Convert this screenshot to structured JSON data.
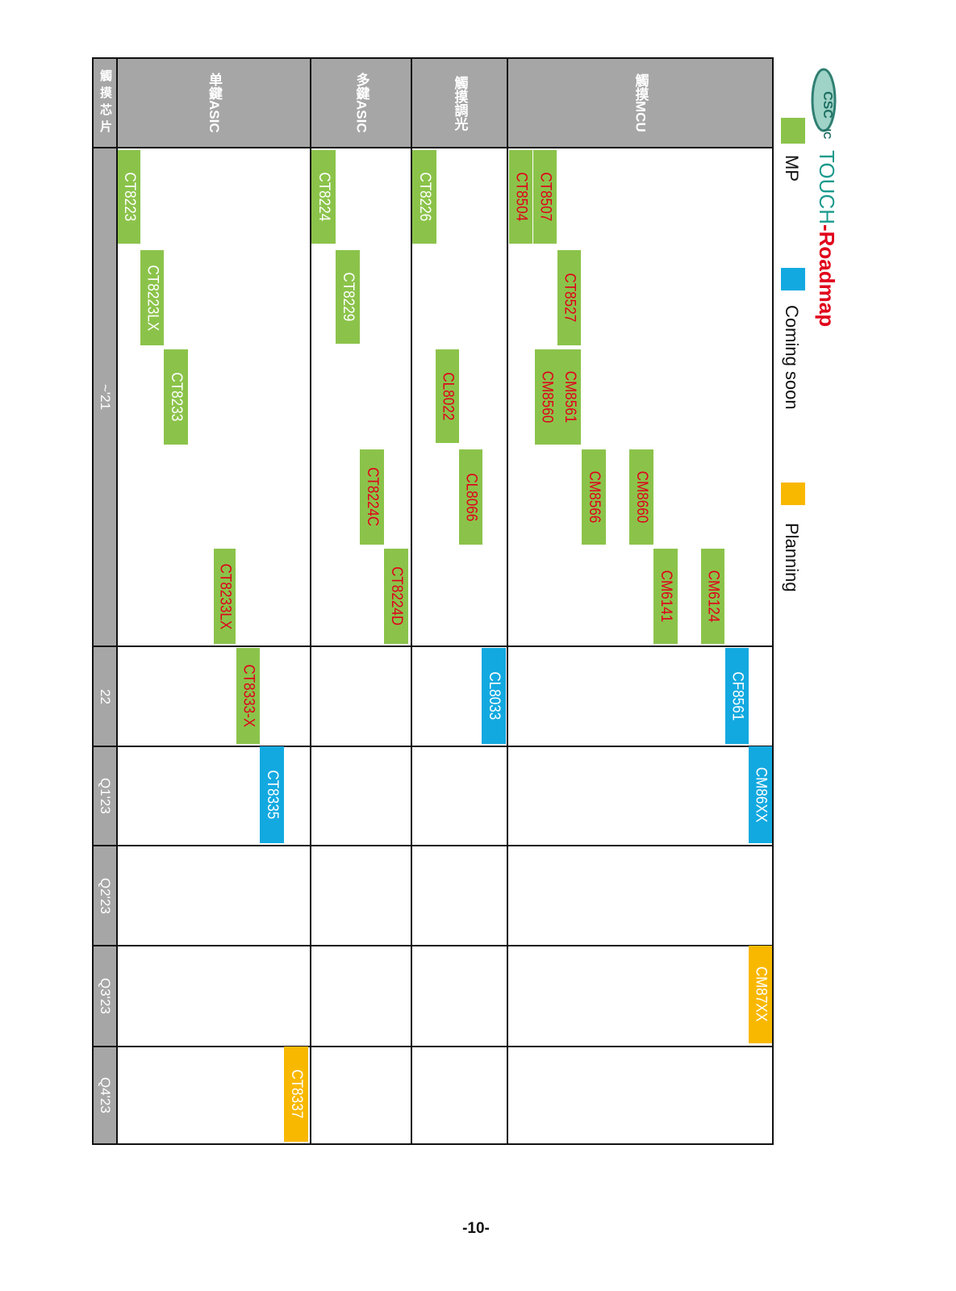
{
  "logo": {
    "text": "CSC IC"
  },
  "title": {
    "part1": "TOUCH",
    "part2": "-Roadmap",
    "color1": "#1a9a8c",
    "color2": "#e0001b"
  },
  "legend": [
    {
      "label": "MP",
      "color": "#8bc34a"
    },
    {
      "label": "Coming soon",
      "color": "#12a9e0"
    },
    {
      "label": "Planning",
      "color": "#f9b800"
    }
  ],
  "table": {
    "corner": "觸摸芯片",
    "periods": [
      "~'21",
      "22",
      "Q1'23",
      "Q2'23",
      "Q3'23",
      "Q4'23"
    ],
    "rows": [
      {
        "id": "mcu",
        "line1": "觸摸",
        "line2": "MCU"
      },
      {
        "id": "dimming",
        "line1": "觸摸",
        "line2": "調光"
      },
      {
        "id": "multi-key",
        "line1": "多鍵",
        "line2": "ASIC"
      },
      {
        "id": "single-key",
        "line1": "单鍵",
        "line2": "ASIC"
      }
    ]
  },
  "products": [
    {
      "name": "CT8504",
      "row": "mcu",
      "period": "~'21",
      "status": "MP",
      "label_color": "#e0001b"
    },
    {
      "name": "CT8507",
      "row": "mcu",
      "period": "~'21",
      "status": "MP",
      "label_color": "#e0001b"
    },
    {
      "name": "CT8527",
      "row": "mcu",
      "period": "~'21",
      "status": "MP",
      "label_color": "#e0001b"
    },
    {
      "name": "CM8560",
      "row": "mcu",
      "period": "~'21",
      "status": "MP",
      "label_color": "#e0001b"
    },
    {
      "name": "CM8561",
      "row": "mcu",
      "period": "~'21",
      "status": "MP",
      "label_color": "#e0001b"
    },
    {
      "name": "CM8566",
      "row": "mcu",
      "period": "~'21",
      "status": "MP",
      "label_color": "#e0001b"
    },
    {
      "name": "CM8660",
      "row": "mcu",
      "period": "~'21",
      "status": "MP",
      "label_color": "#e0001b"
    },
    {
      "name": "CM6141",
      "row": "mcu",
      "period": "~'21",
      "status": "MP",
      "label_color": "#e0001b"
    },
    {
      "name": "CM6124",
      "row": "mcu",
      "period": "~'21",
      "status": "MP",
      "label_color": "#e0001b"
    },
    {
      "name": "CF8561",
      "row": "mcu",
      "period": "22",
      "status": "Coming soon",
      "label_color": "#ffffff"
    },
    {
      "name": "CM86XX",
      "row": "mcu",
      "period": "Q1'23",
      "status": "Coming soon",
      "label_color": "#ffffff"
    },
    {
      "name": "CM87XX",
      "row": "mcu",
      "period": "Q3'23",
      "status": "Planning",
      "label_color": "#ffffff"
    },
    {
      "name": "CT8226",
      "row": "dimming",
      "period": "~'21",
      "status": "MP",
      "label_color": "#ffffff"
    },
    {
      "name": "CL8022",
      "row": "dimming",
      "period": "~'21",
      "status": "MP",
      "label_color": "#e0001b"
    },
    {
      "name": "CL8066",
      "row": "dimming",
      "period": "~'21",
      "status": "MP",
      "label_color": "#e0001b"
    },
    {
      "name": "CL8033",
      "row": "dimming",
      "period": "22",
      "status": "Coming soon",
      "label_color": "#ffffff"
    },
    {
      "name": "CT8224",
      "row": "multi-key",
      "period": "~'21",
      "status": "MP",
      "label_color": "#ffffff"
    },
    {
      "name": "CT8229",
      "row": "multi-key",
      "period": "~'21",
      "status": "MP",
      "label_color": "#ffffff"
    },
    {
      "name": "CT8224C",
      "row": "multi-key",
      "period": "~'21",
      "status": "MP",
      "label_color": "#e0001b"
    },
    {
      "name": "CT8224D",
      "row": "multi-key",
      "period": "~'21",
      "status": "MP",
      "label_color": "#e0001b"
    },
    {
      "name": "CT8223",
      "row": "single-key",
      "period": "~'21",
      "status": "MP",
      "label_color": "#ffffff"
    },
    {
      "name": "CT8223LX",
      "row": "single-key",
      "period": "~'21",
      "status": "MP",
      "label_color": "#ffffff"
    },
    {
      "name": "CT8233",
      "row": "single-key",
      "period": "~'21",
      "status": "MP",
      "label_color": "#ffffff"
    },
    {
      "name": "CT8233LX",
      "row": "single-key",
      "period": "~'21",
      "status": "MP",
      "label_color": "#e0001b"
    },
    {
      "name": "CT8333-X",
      "row": "single-key",
      "period": "22",
      "status": "MP",
      "label_color": "#e0001b"
    },
    {
      "name": "CT8335",
      "row": "single-key",
      "period": "Q1'23",
      "status": "Coming soon",
      "label_color": "#ffffff"
    },
    {
      "name": "CT8337",
      "row": "single-key",
      "period": "Q4'23",
      "status": "Planning",
      "label_color": "#ffffff"
    }
  ],
  "footer": {
    "page_number": "-10-"
  }
}
